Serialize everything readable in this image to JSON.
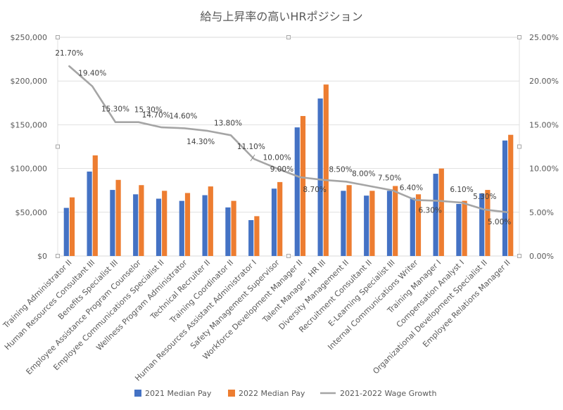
{
  "chart_data": {
    "type": "bar",
    "title": "給与上昇率の高いHRポジション",
    "categories": [
      "Training Administrator II",
      "Human Resources Consultant III",
      "Benefits Specialist III",
      "Employee Assistance Program Counselor",
      "Employee Communications Specialist II",
      "Wellness Program Administrator",
      "Technical Recruiter II",
      "Training Coordinator II",
      "Human Resources Assistant Administrator I",
      "Safety Management Supervisor",
      "Workforce Development Manager II",
      "Talent Manager, HR III",
      "Diversity Management II",
      "Recruitment Consultant II",
      "E-Learning Specialist III",
      "Internal Communications Writer",
      "Training Manager I",
      "Compensation Analyst I",
      "Organizational Development Specialist II",
      "Employee Relations Manager II"
    ],
    "series": [
      {
        "name": "2021 Median Pay",
        "axis": "left",
        "type": "bar",
        "color": "#4472C4",
        "values": [
          55000,
          96500,
          75500,
          70500,
          65500,
          63000,
          69500,
          55500,
          41000,
          77000,
          147000,
          180000,
          74500,
          69000,
          74500,
          66500,
          94000,
          59500,
          71500,
          132000
        ]
      },
      {
        "name": "2022 Median Pay",
        "axis": "left",
        "type": "bar",
        "color": "#ED7D31",
        "values": [
          67000,
          115000,
          87000,
          81000,
          74500,
          72000,
          79500,
          63000,
          45500,
          84500,
          160000,
          196000,
          81000,
          74500,
          80000,
          70500,
          100000,
          63000,
          75500,
          138500
        ]
      },
      {
        "name": "2021-2022 Wage Growth",
        "axis": "right",
        "type": "line",
        "color": "#A5A5A5",
        "values": [
          0.217,
          0.194,
          0.153,
          0.153,
          0.147,
          0.146,
          0.143,
          0.138,
          0.111,
          0.1,
          0.09,
          0.087,
          0.085,
          0.08,
          0.075,
          0.064,
          0.063,
          0.061,
          0.053,
          0.05
        ],
        "data_labels": [
          "21.70%",
          "19.40%",
          "15.30%",
          "15.30%",
          "14.70%",
          "14.60%",
          "14.30%",
          "13.80%",
          "11.10%",
          "10.00%",
          "9.00%",
          "8.70%",
          "8.50%",
          "8.00%",
          "7.50%",
          "6.40%",
          "6.30%",
          "6.10%",
          "5.30%",
          "5.00%"
        ]
      }
    ],
    "y_left": {
      "ylim": [
        0,
        250000
      ],
      "ticks": [
        0,
        50000,
        100000,
        150000,
        200000,
        250000
      ],
      "tick_labels": [
        "$0",
        "$50,000",
        "$100,000",
        "$150,000",
        "$200,000",
        "$250,000"
      ]
    },
    "y_right": {
      "ylim": [
        0,
        0.25
      ],
      "ticks": [
        0,
        0.05,
        0.1,
        0.15,
        0.2,
        0.25
      ],
      "tick_labels": [
        "0.00%",
        "5.00%",
        "10.00%",
        "15.00%",
        "20.00%",
        "25.00%"
      ]
    },
    "grid": "horizontal",
    "legend": "bottom"
  }
}
